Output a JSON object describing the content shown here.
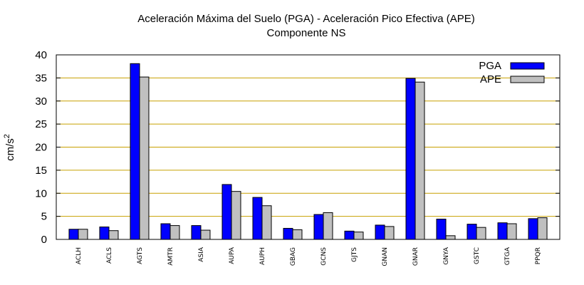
{
  "chart_data": {
    "type": "bar",
    "title": "Aceleración Máxima del Suelo (PGA) -  Aceleración Pico Efectiva (APE)",
    "subtitle": "Componente NS",
    "ylabel_base": "cm/s",
    "ylabel_sup": "2",
    "ylim": [
      0,
      40
    ],
    "yticks": [
      0,
      5,
      10,
      15,
      20,
      25,
      30,
      35,
      40
    ],
    "grid": true,
    "legend_position": "top-right",
    "categories": [
      "ACLH",
      "ACLS",
      "AGTS",
      "AMTR",
      "ASIA",
      "AUPA",
      "AUPH",
      "GBAG",
      "GCNS",
      "GJTS",
      "GNAN",
      "GNAR",
      "GNYA",
      "GSTC",
      "GTGA",
      "PPQR"
    ],
    "series": [
      {
        "name": "PGA",
        "color": "#0000ff",
        "values": [
          2.2,
          2.7,
          38.1,
          3.4,
          3.0,
          11.9,
          9.1,
          2.4,
          5.4,
          1.8,
          3.1,
          34.9,
          4.4,
          3.3,
          3.6,
          4.5
        ]
      },
      {
        "name": "APE",
        "color": "#c0c0c0",
        "values": [
          2.2,
          1.9,
          35.2,
          3.0,
          2.0,
          10.4,
          7.3,
          2.1,
          5.8,
          1.6,
          2.8,
          34.1,
          0.8,
          2.6,
          3.4,
          4.7
        ]
      }
    ],
    "grid_color": "#c8a000"
  }
}
